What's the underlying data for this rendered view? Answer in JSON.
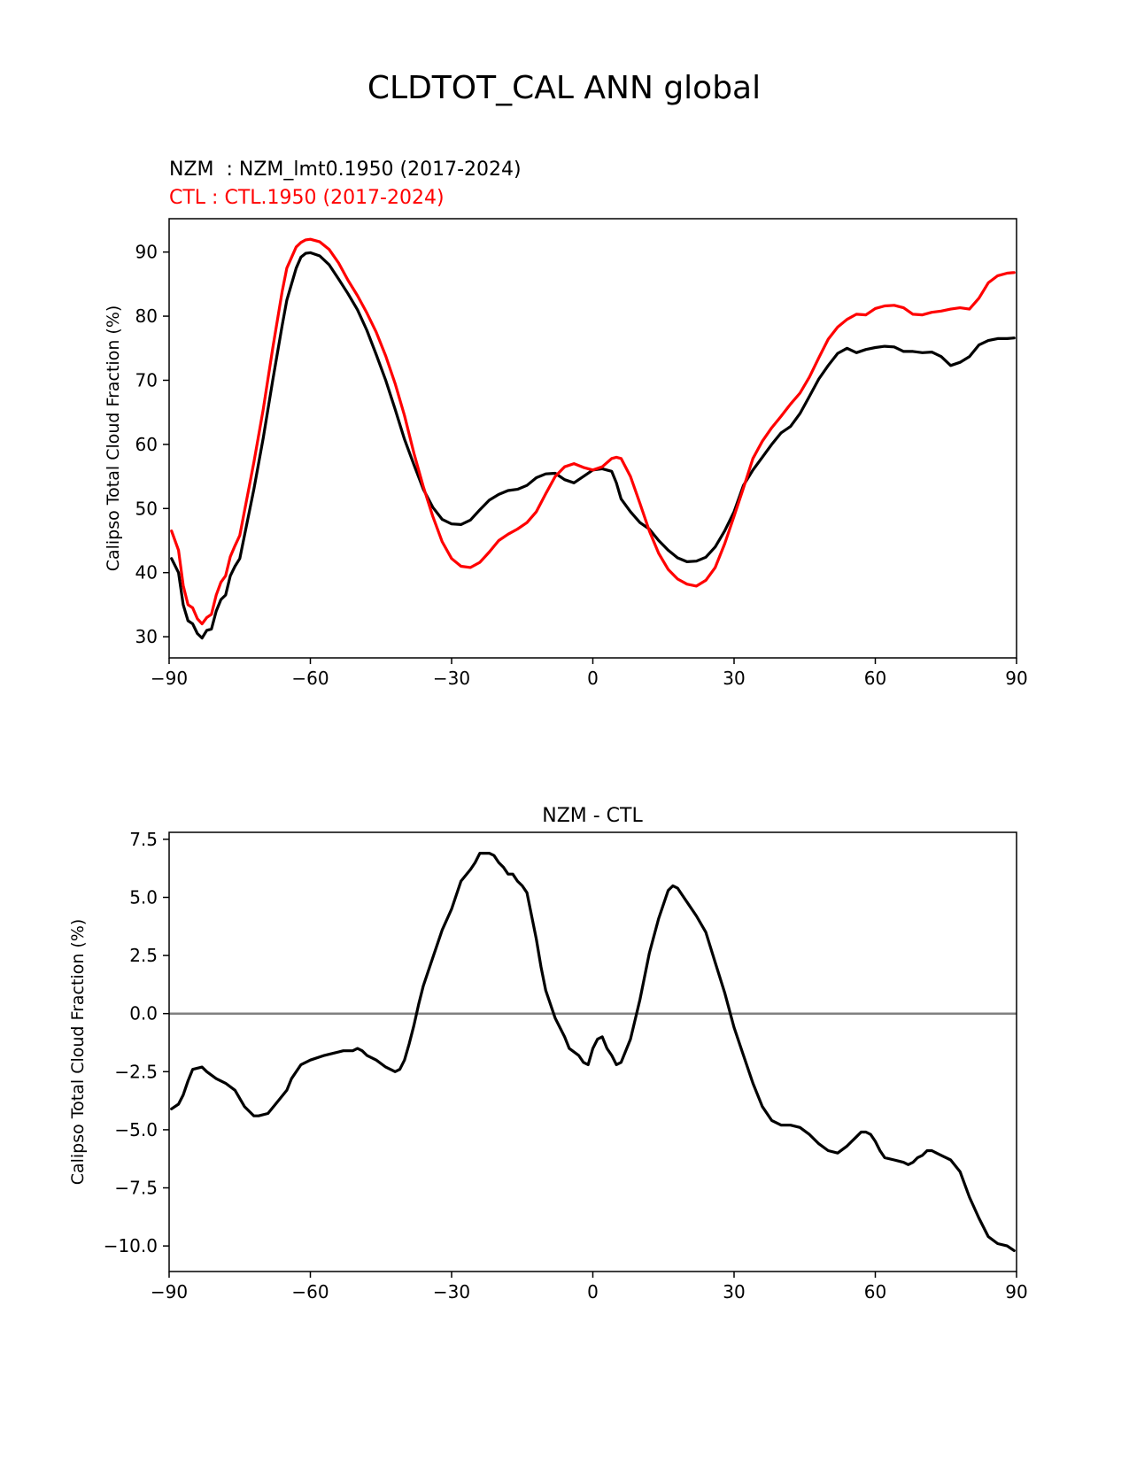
{
  "figure": {
    "title": "CLDTOT_CAL ANN global"
  },
  "colors": {
    "nzm": "#000000",
    "ctl": "#ff0000",
    "zero_line": "#808080",
    "axes": "#000000"
  },
  "chart_data": [
    {
      "type": "line",
      "subtitle_nzm": "NZM  : NZM_lmt0.1950 (2017-2024)",
      "subtitle_ctl": "CTL : CTL.1950 (2017-2024)",
      "xlabel": "",
      "ylabel": "Calipso Total Cloud Fraction (%)",
      "xlim": [
        -90,
        90
      ],
      "ylim": [
        26.7,
        95.2
      ],
      "xticks": [
        -90,
        -60,
        -30,
        0,
        30,
        60,
        90
      ],
      "xtick_labels": [
        "−90",
        "−60",
        "−30",
        "0",
        "30",
        "60",
        "90"
      ],
      "yticks": [
        30,
        40,
        50,
        60,
        70,
        80,
        90
      ],
      "ytick_labels": [
        "30",
        "40",
        "50",
        "60",
        "70",
        "80",
        "90"
      ],
      "grid": false,
      "series": [
        {
          "name": "NZM",
          "x": [
            -89.5,
            -88,
            -87,
            -86,
            -85,
            -84,
            -83,
            -82,
            -81,
            -80,
            -79,
            -78,
            -77,
            -76,
            -75,
            -72,
            -70,
            -68,
            -66,
            -65,
            -63,
            -62,
            -61,
            -60,
            -58,
            -56,
            -54,
            -52,
            -50,
            -48,
            -46,
            -44,
            -42,
            -40,
            -38,
            -36,
            -34,
            -32,
            -30,
            -28,
            -26,
            -24,
            -22,
            -20,
            -18,
            -16,
            -14,
            -12,
            -10,
            -8,
            -6,
            -4,
            -2,
            0,
            2,
            4,
            5,
            6,
            8,
            10,
            12,
            14,
            16,
            18,
            20,
            22,
            24,
            26,
            28,
            30,
            32,
            34,
            36,
            38,
            40,
            42,
            44,
            46,
            48,
            50,
            52,
            54,
            56,
            58,
            60,
            62,
            64,
            66,
            68,
            70,
            72,
            74,
            76,
            78,
            80,
            82,
            84,
            86,
            88,
            89.5
          ],
          "values": [
            42.2,
            40,
            35,
            32.5,
            32,
            30.5,
            29.8,
            31,
            31.2,
            34,
            35.8,
            36.5,
            39.5,
            41,
            42.2,
            53,
            61,
            70,
            78.5,
            82.5,
            87.5,
            89.2,
            89.8,
            89.9,
            89.4,
            88,
            85.8,
            83.5,
            81,
            77.8,
            74,
            70,
            65.5,
            60.8,
            56.8,
            53,
            50.2,
            48.3,
            47.6,
            47.5,
            48.2,
            49.8,
            51.3,
            52.2,
            52.8,
            53,
            53.6,
            54.8,
            55.4,
            55.5,
            54.5,
            54,
            55,
            56,
            56.2,
            55.8,
            54,
            51.5,
            49.5,
            47.8,
            46.8,
            45,
            43.5,
            42.3,
            41.7,
            41.8,
            42.4,
            44,
            46.5,
            49.5,
            53.6,
            56,
            58,
            60,
            61.8,
            62.8,
            64.8,
            67.5,
            70.2,
            72.3,
            74.2,
            75,
            74.3,
            74.8,
            75.1,
            75.3,
            75.2,
            74.5,
            74.5,
            74.3,
            74.4,
            73.7,
            72.3,
            72.8,
            73.7,
            75.5,
            76.2,
            76.5,
            76.5,
            76.6
          ]
        },
        {
          "name": "CTL",
          "x": [
            -89.5,
            -88,
            -87,
            -86,
            -85,
            -84,
            -83,
            -82,
            -81,
            -80,
            -79,
            -78,
            -77,
            -76,
            -75,
            -72,
            -70,
            -68,
            -66,
            -65,
            -63,
            -62,
            -61,
            -60,
            -58,
            -56,
            -54,
            -52,
            -50,
            -48,
            -46,
            -44,
            -42,
            -40,
            -38,
            -36,
            -34,
            -32,
            -30,
            -28,
            -26,
            -24,
            -22,
            -20,
            -18,
            -16,
            -14,
            -12,
            -10,
            -8,
            -6,
            -4,
            -2,
            0,
            2,
            4,
            5,
            6,
            8,
            10,
            12,
            14,
            16,
            18,
            20,
            22,
            24,
            26,
            28,
            30,
            32,
            34,
            36,
            38,
            40,
            42,
            44,
            46,
            48,
            50,
            52,
            54,
            56,
            58,
            60,
            62,
            64,
            66,
            68,
            70,
            72,
            74,
            76,
            78,
            80,
            82,
            84,
            86,
            88,
            89.5
          ],
          "values": [
            46.5,
            43.5,
            38,
            35,
            34.5,
            32.8,
            32,
            33,
            33.5,
            36.5,
            38.5,
            39.5,
            42.5,
            44.2,
            45.8,
            57.2,
            65.5,
            75,
            83.8,
            87.5,
            90.8,
            91.5,
            91.9,
            92,
            91.6,
            90.4,
            88.3,
            85.6,
            83.2,
            80.5,
            77.5,
            73.8,
            69.5,
            64.5,
            58.6,
            53.4,
            48.8,
            44.8,
            42.2,
            41,
            40.8,
            41.6,
            43.2,
            45,
            46,
            46.8,
            47.8,
            49.5,
            52.3,
            55,
            56.5,
            57,
            56.4,
            56,
            56.5,
            57.8,
            58,
            57.8,
            55,
            50.8,
            46.5,
            43,
            40.5,
            39,
            38.2,
            37.9,
            38.8,
            40.8,
            44.5,
            48.8,
            53.2,
            57.8,
            60.5,
            62.6,
            64.4,
            66.3,
            68,
            70.5,
            73.5,
            76.4,
            78.3,
            79.5,
            80.3,
            80.2,
            81.2,
            81.6,
            81.7,
            81.3,
            80.3,
            80.2,
            80.6,
            80.8,
            81.1,
            81.3,
            81.1,
            82.8,
            85.2,
            86.3,
            86.7,
            86.8
          ]
        }
      ]
    },
    {
      "type": "line",
      "title": "NZM - CTL",
      "xlabel": "",
      "ylabel": "Calipso Total Cloud Fraction (%)",
      "xlim": [
        -90,
        90
      ],
      "ylim": [
        -11.1,
        7.8
      ],
      "xticks": [
        -90,
        -60,
        -30,
        0,
        30,
        60,
        90
      ],
      "xtick_labels": [
        "−90",
        "−60",
        "−30",
        "0",
        "30",
        "60",
        "90"
      ],
      "yticks": [
        7.5,
        5.0,
        2.5,
        0.0,
        -2.5,
        -5.0,
        -7.5,
        -10.0
      ],
      "ytick_labels": [
        "7.5",
        "5.0",
        "2.5",
        "0.0",
        "−2.5",
        "−5.0",
        "−7.5",
        "−10.0"
      ],
      "grid": false,
      "hline": 0,
      "series": [
        {
          "name": "NZM - CTL",
          "x": [
            -89.5,
            -88,
            -87,
            -86,
            -85,
            -83,
            -82,
            -80,
            -78,
            -76,
            -74,
            -72,
            -71,
            -69,
            -67,
            -65,
            -64,
            -62,
            -60,
            -57,
            -55,
            -53,
            -51,
            -50,
            -49,
            -48,
            -46,
            -44,
            -42,
            -41,
            -40,
            -39,
            -38,
            -37,
            -36,
            -34,
            -32,
            -30,
            -28,
            -26,
            -25,
            -24,
            -22,
            -21,
            -20,
            -19,
            -18,
            -17,
            -16,
            -15,
            -14,
            -12,
            -11,
            -10,
            -8,
            -7,
            -6,
            -5,
            -3,
            -2,
            -1,
            0,
            1,
            2,
            3,
            4,
            5,
            6,
            8,
            10,
            12,
            14,
            16,
            17,
            18,
            19,
            20,
            22,
            24,
            26,
            28,
            30,
            32,
            34,
            36,
            38,
            40,
            42,
            44,
            46,
            48,
            50,
            52,
            54,
            55,
            56,
            57,
            58,
            59,
            60,
            61,
            62,
            64,
            66,
            67,
            68,
            69,
            70,
            71,
            72,
            73,
            74,
            76,
            78,
            80,
            82,
            84,
            86,
            88,
            89.5
          ],
          "values": [
            -4.1,
            -3.9,
            -3.5,
            -2.9,
            -2.4,
            -2.3,
            -2.5,
            -2.8,
            -3,
            -3.3,
            -4,
            -4.4,
            -4.4,
            -4.3,
            -3.8,
            -3.3,
            -2.8,
            -2.2,
            -2,
            -1.8,
            -1.7,
            -1.6,
            -1.6,
            -1.5,
            -1.6,
            -1.8,
            -2,
            -2.3,
            -2.5,
            -2.4,
            -2,
            -1.3,
            -0.5,
            0.4,
            1.2,
            2.4,
            3.6,
            4.5,
            5.7,
            6.2,
            6.5,
            6.9,
            6.9,
            6.8,
            6.5,
            6.3,
            6,
            6,
            5.7,
            5.5,
            5.2,
            3.2,
            2,
            1,
            -0.2,
            -0.6,
            -1,
            -1.5,
            -1.8,
            -2.1,
            -2.2,
            -1.5,
            -1.1,
            -1,
            -1.5,
            -1.8,
            -2.2,
            -2.1,
            -1.1,
            0.6,
            2.6,
            4.1,
            5.3,
            5.5,
            5.4,
            5.1,
            4.8,
            4.2,
            3.5,
            2.2,
            0.9,
            -0.6,
            -1.8,
            -3,
            -4,
            -4.6,
            -4.8,
            -4.8,
            -4.9,
            -5.2,
            -5.6,
            -5.9,
            -6,
            -5.7,
            -5.5,
            -5.3,
            -5.1,
            -5.1,
            -5.2,
            -5.5,
            -5.9,
            -6.2,
            -6.3,
            -6.4,
            -6.5,
            -6.4,
            -6.2,
            -6.1,
            -5.9,
            -5.9,
            -6,
            -6.1,
            -6.3,
            -6.8,
            -7.9,
            -8.8,
            -9.6,
            -9.9,
            -10,
            -10.2
          ]
        }
      ]
    }
  ]
}
